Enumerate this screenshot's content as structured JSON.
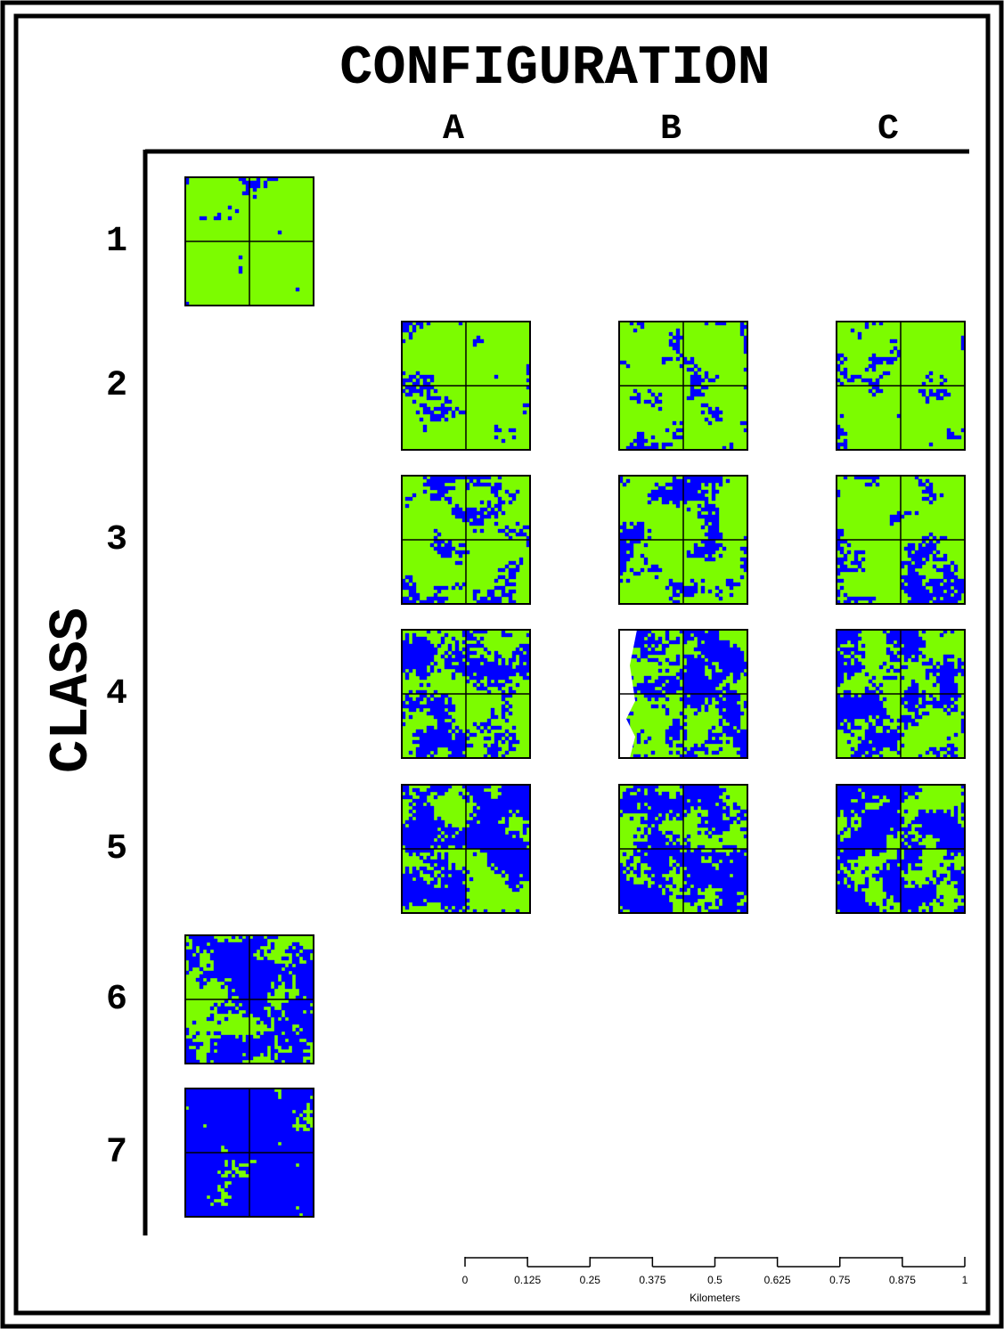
{
  "header": {
    "title": "CONFIGURATION",
    "columns": [
      "A",
      "B",
      "C"
    ]
  },
  "rows": {
    "axis_label": "CLASS",
    "labels": [
      "1",
      "2",
      "3",
      "4",
      "5",
      "6",
      "7"
    ]
  },
  "scale_bar": {
    "ticks": [
      0,
      0.125,
      0.25,
      0.375,
      0.5,
      0.625,
      0.75,
      0.875,
      1
    ],
    "unit": "Kilometers"
  }
}
